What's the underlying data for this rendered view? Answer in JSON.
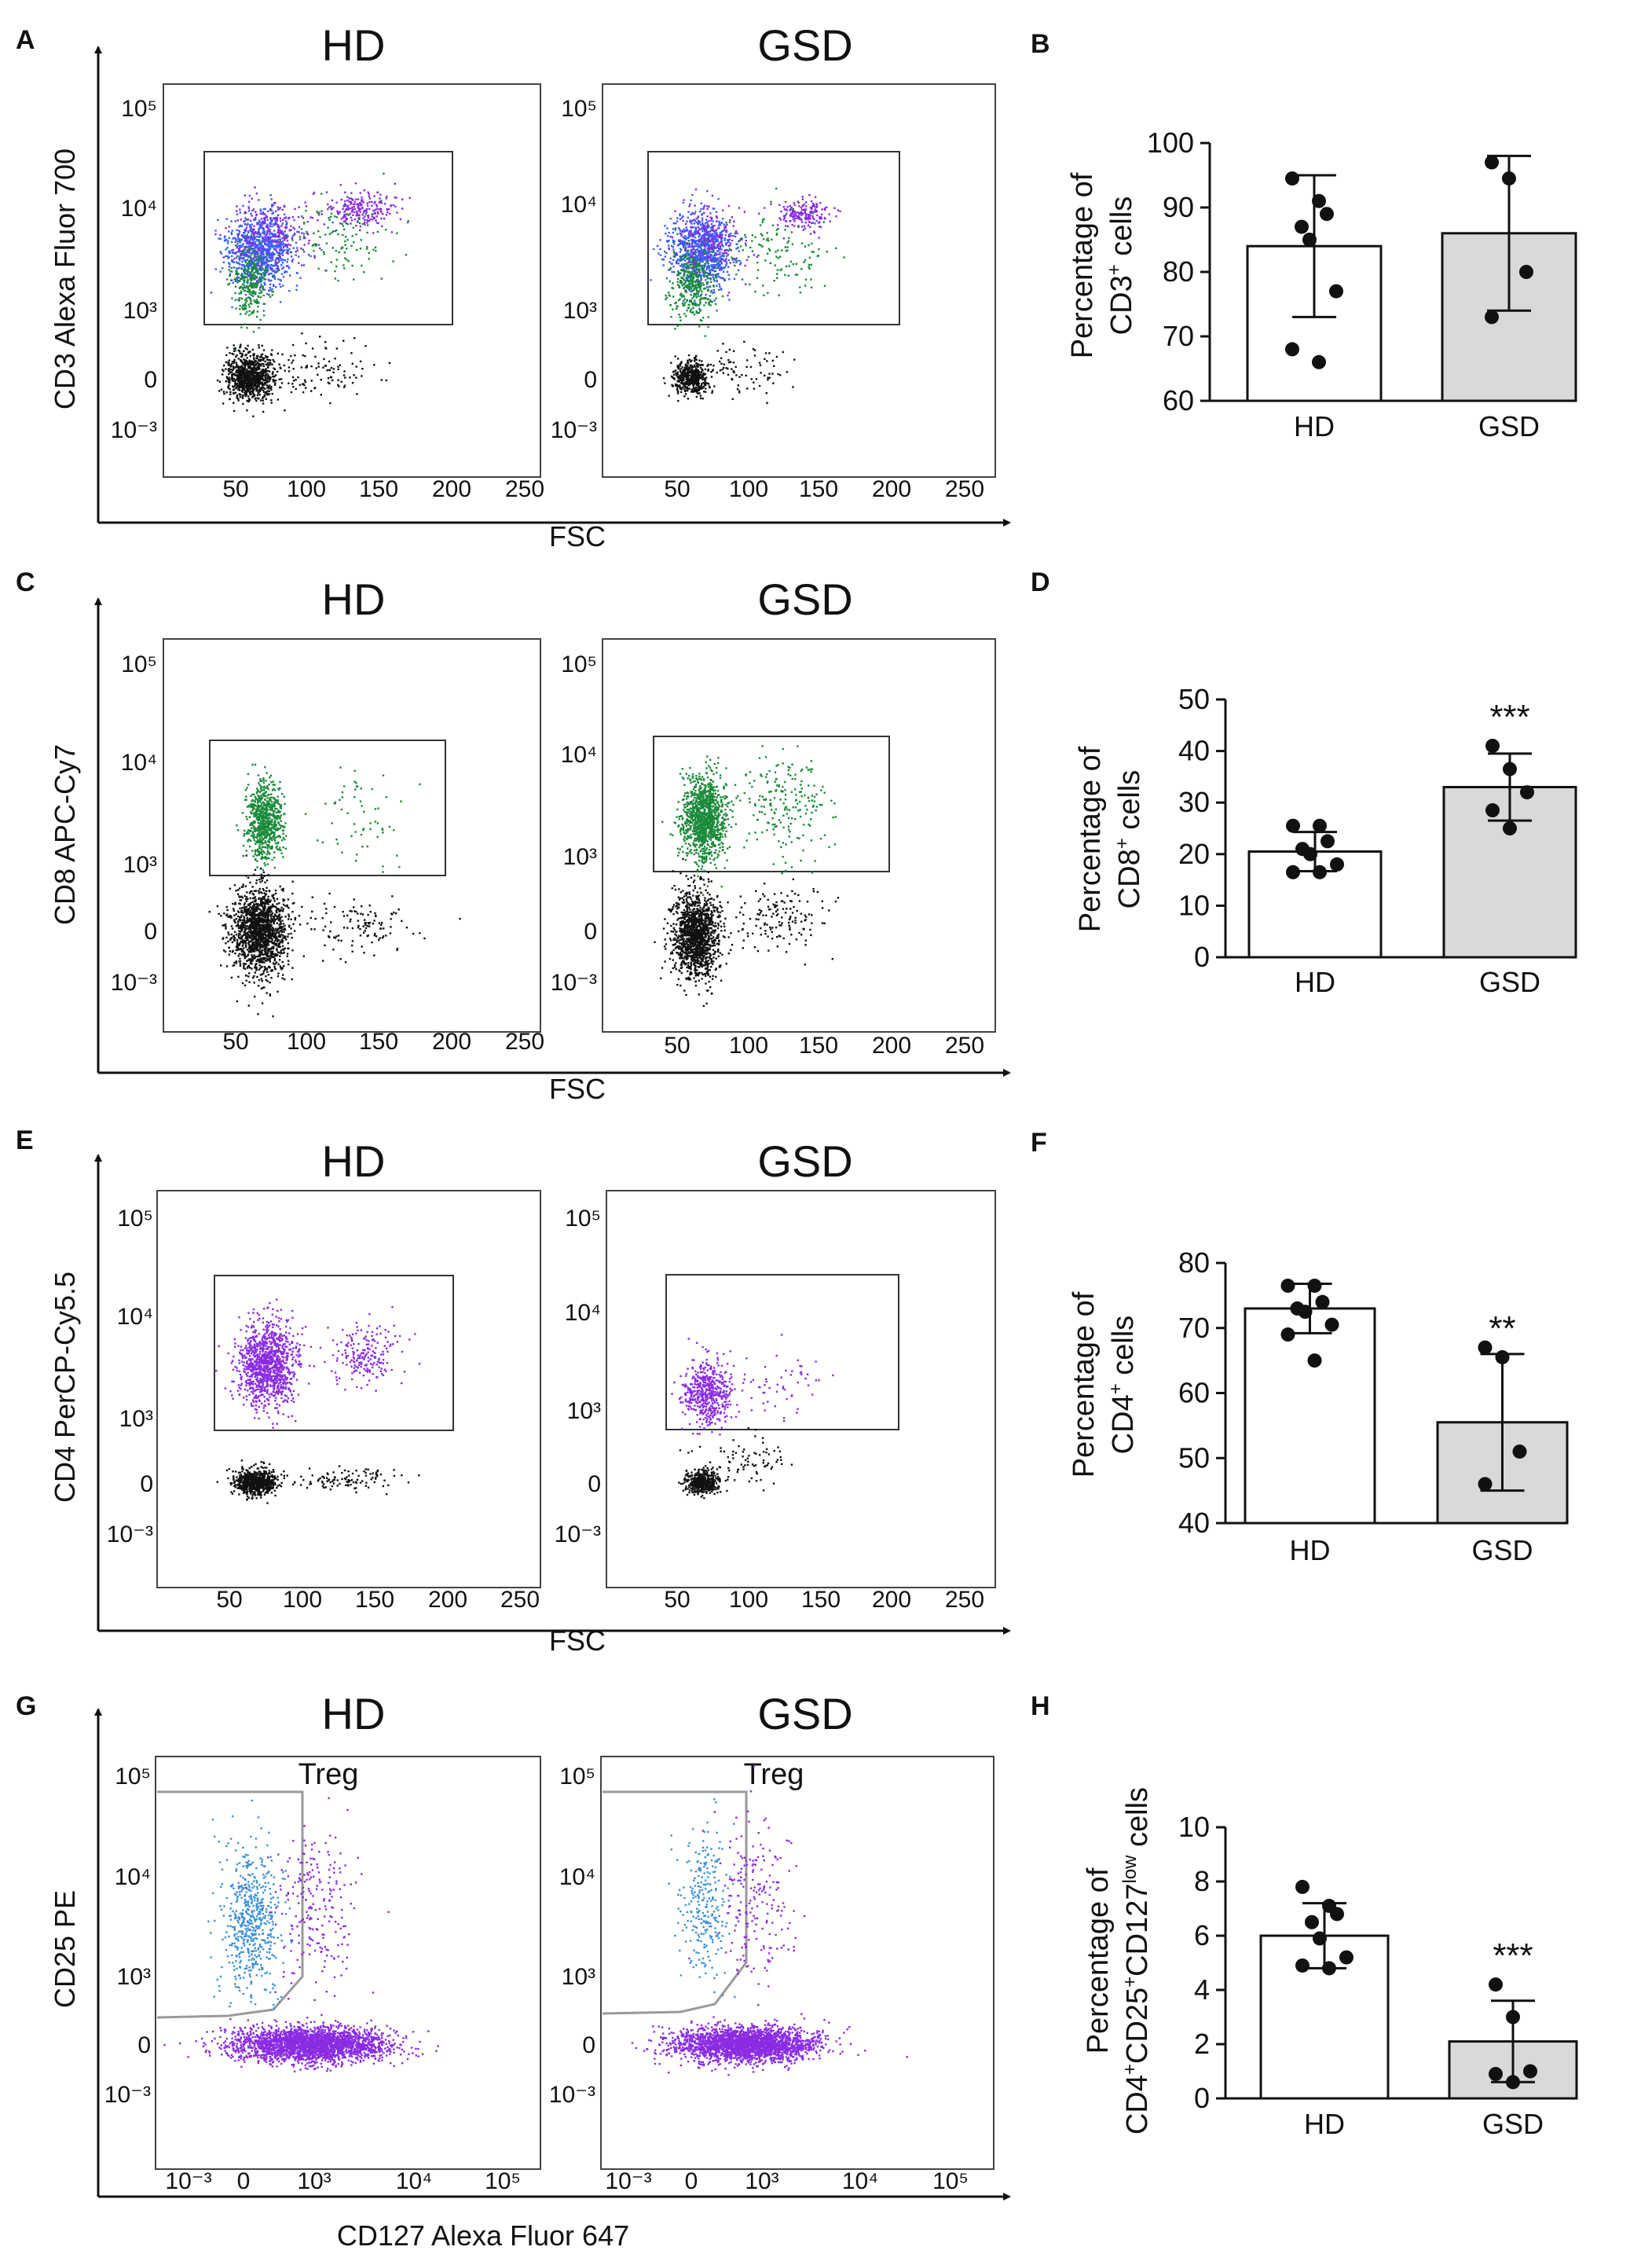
{
  "figure": {
    "rows": [
      {
        "flow_letter": "A",
        "bar_letter": "B",
        "groups": [
          "HD",
          "GSD"
        ],
        "y_axis_label": "CD3 Alexa Fluor 700",
        "x_axis_label": "FSC",
        "y_ticks": [
          "10⁵",
          "10⁴",
          "10³",
          "0",
          "10⁻³"
        ],
        "x_ticks": [
          "50",
          "100",
          "150",
          "200",
          "250"
        ],
        "gate_label": ""
      },
      {
        "flow_letter": "C",
        "bar_letter": "D",
        "groups": [
          "HD",
          "GSD"
        ],
        "y_axis_label": "CD8 APC-Cy7",
        "x_axis_label": "FSC",
        "y_ticks": [
          "10⁵",
          "10⁴",
          "10³",
          "0",
          "10⁻³"
        ],
        "x_ticks": [
          "50",
          "100",
          "150",
          "200",
          "250"
        ],
        "gate_label": ""
      },
      {
        "flow_letter": "E",
        "bar_letter": "F",
        "groups": [
          "HD",
          "GSD"
        ],
        "y_axis_label": "CD4 PerCP-Cy5.5",
        "x_axis_label": "FSC",
        "y_ticks": [
          "10⁵",
          "10⁴",
          "10³",
          "0",
          "10⁻³"
        ],
        "x_ticks": [
          "50",
          "100",
          "150",
          "200",
          "250"
        ],
        "gate_label": ""
      },
      {
        "flow_letter": "G",
        "bar_letter": "H",
        "groups": [
          "HD",
          "GSD"
        ],
        "y_axis_label": "CD25 PE",
        "x_axis_label": "CD127 Alexa Fluor 647",
        "y_ticks": [
          "10⁵",
          "10⁴",
          "10³",
          "0",
          "10⁻³"
        ],
        "x_ticks": [
          "10⁻³",
          "0",
          "10³",
          "10⁴",
          "10⁵"
        ],
        "gate_label": "Treg"
      }
    ],
    "colors": {
      "population_purple": "#8a2be2",
      "population_blue": "#3b5bff",
      "population_green": "#1a8a3a",
      "population_lightblue": "#3a8fd6",
      "negative_black": "#111111",
      "bar_hd": "#ffffff",
      "bar_gsd": "#d9d9d9"
    }
  },
  "chart_data": [
    {
      "type": "bar",
      "id": "B",
      "categories": [
        "HD",
        "GSD"
      ],
      "means": [
        84,
        86
      ],
      "sd": [
        11,
        12
      ],
      "points": [
        [
          94.5,
          91,
          89,
          87,
          85,
          77,
          68,
          66
        ],
        [
          97,
          94.5,
          80,
          73
        ]
      ],
      "significance": [
        "",
        ""
      ],
      "ylabel_line1": "Percentage of",
      "ylabel_line2_pre": "CD3",
      "ylabel_sup1": "+",
      "ylabel_line2_post": " cells",
      "ylabel_sup2": "",
      "ylabel_line2_end": "",
      "ylim": [
        60,
        100
      ],
      "yticks": [
        "60",
        "70",
        "80",
        "90",
        "100"
      ]
    },
    {
      "type": "bar",
      "id": "D",
      "categories": [
        "HD",
        "GSD"
      ],
      "means": [
        20.5,
        33
      ],
      "sd": [
        3.8,
        6.5
      ],
      "points": [
        [
          25.5,
          25.5,
          22.5,
          21,
          20,
          18,
          16.5,
          16.5
        ],
        [
          41,
          36.5,
          32,
          28.5,
          25
        ]
      ],
      "significance": [
        "",
        "***"
      ],
      "ylabel_line1": "Percentage of",
      "ylabel_line2_pre": "CD8",
      "ylabel_sup1": "+",
      "ylabel_line2_post": " cells",
      "ylabel_sup2": "",
      "ylabel_line2_end": "",
      "ylim": [
        0,
        50
      ],
      "yticks": [
        "0",
        "10",
        "20",
        "30",
        "40",
        "50"
      ]
    },
    {
      "type": "bar",
      "id": "F",
      "categories": [
        "HD",
        "GSD"
      ],
      "means": [
        73,
        55.5
      ],
      "sd": [
        3.8,
        10.5
      ],
      "points": [
        [
          76.5,
          76.5,
          74,
          73,
          72.5,
          70.5,
          69,
          65
        ],
        [
          67,
          65.5,
          51,
          46
        ]
      ],
      "significance": [
        "",
        "**"
      ],
      "ylabel_line1": "Percentage of",
      "ylabel_line2_pre": "CD4",
      "ylabel_sup1": "+",
      "ylabel_line2_post": " cells",
      "ylabel_sup2": "",
      "ylabel_line2_end": "",
      "ylim": [
        40,
        80
      ],
      "yticks": [
        "40",
        "50",
        "60",
        "70",
        "80"
      ]
    },
    {
      "type": "bar",
      "id": "H",
      "categories": [
        "HD",
        "GSD"
      ],
      "means": [
        6,
        2.1
      ],
      "sd": [
        1.2,
        1.5
      ],
      "points": [
        [
          7.8,
          7.1,
          6.8,
          6.5,
          5.9,
          5.2,
          4.9,
          4.8
        ],
        [
          4.2,
          3,
          1,
          0.9,
          0.6
        ]
      ],
      "significance": [
        "",
        "***"
      ],
      "ylabel_line1": "Percentage of",
      "ylabel_line2_pre": "CD4",
      "ylabel_sup1": "+",
      "ylabel_line2_post": "CD25",
      "ylabel_sup2": "+",
      "ylabel_line2_end": "CD127",
      "ylabel_sup3": "low",
      "ylabel_tail": " cells",
      "ylim": [
        0,
        10
      ],
      "yticks": [
        "0",
        "2",
        "4",
        "6",
        "8",
        "10"
      ]
    }
  ]
}
